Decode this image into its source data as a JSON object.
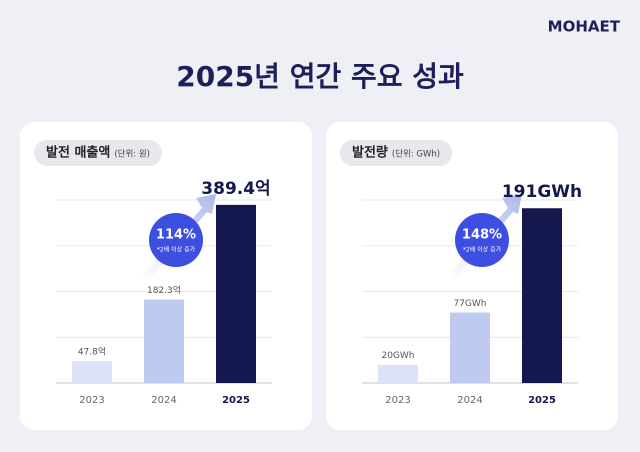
{
  "header": {
    "logo": "MOHAET",
    "title": "2025년 연간 주요 성과"
  },
  "chart_data": [
    {
      "type": "bar",
      "title": "발전 매출액",
      "subtitle": "(단위: 원)",
      "categories": [
        "2023",
        "2024",
        "2025"
      ],
      "values": [
        47.8,
        182.3,
        389.4
      ],
      "value_labels": [
        "47.8억",
        "182.3억",
        "389.4억"
      ],
      "colors": [
        "#dde2f6",
        "#bfcaf0",
        "#15174f"
      ],
      "ylim": [
        0,
        400
      ],
      "yticks": [
        0,
        100,
        200,
        300,
        400
      ],
      "grid": true,
      "annotations": [
        "114%",
        "*2배 이상 증가"
      ]
    },
    {
      "type": "bar",
      "title": "발전량",
      "subtitle": "(단위: GWh)",
      "categories": [
        "2023",
        "2024",
        "2025"
      ],
      "values": [
        20,
        77,
        191
      ],
      "value_labels": [
        "20GWh",
        "77GWh",
        "191GWh"
      ],
      "colors": [
        "#dde2f6",
        "#bfcaf0",
        "#15174f"
      ],
      "ylim": [
        0,
        200
      ],
      "yticks": [
        0,
        50,
        100,
        150,
        200
      ],
      "grid": true,
      "annotations": [
        "148%",
        "*2배 이상 증가"
      ]
    }
  ]
}
